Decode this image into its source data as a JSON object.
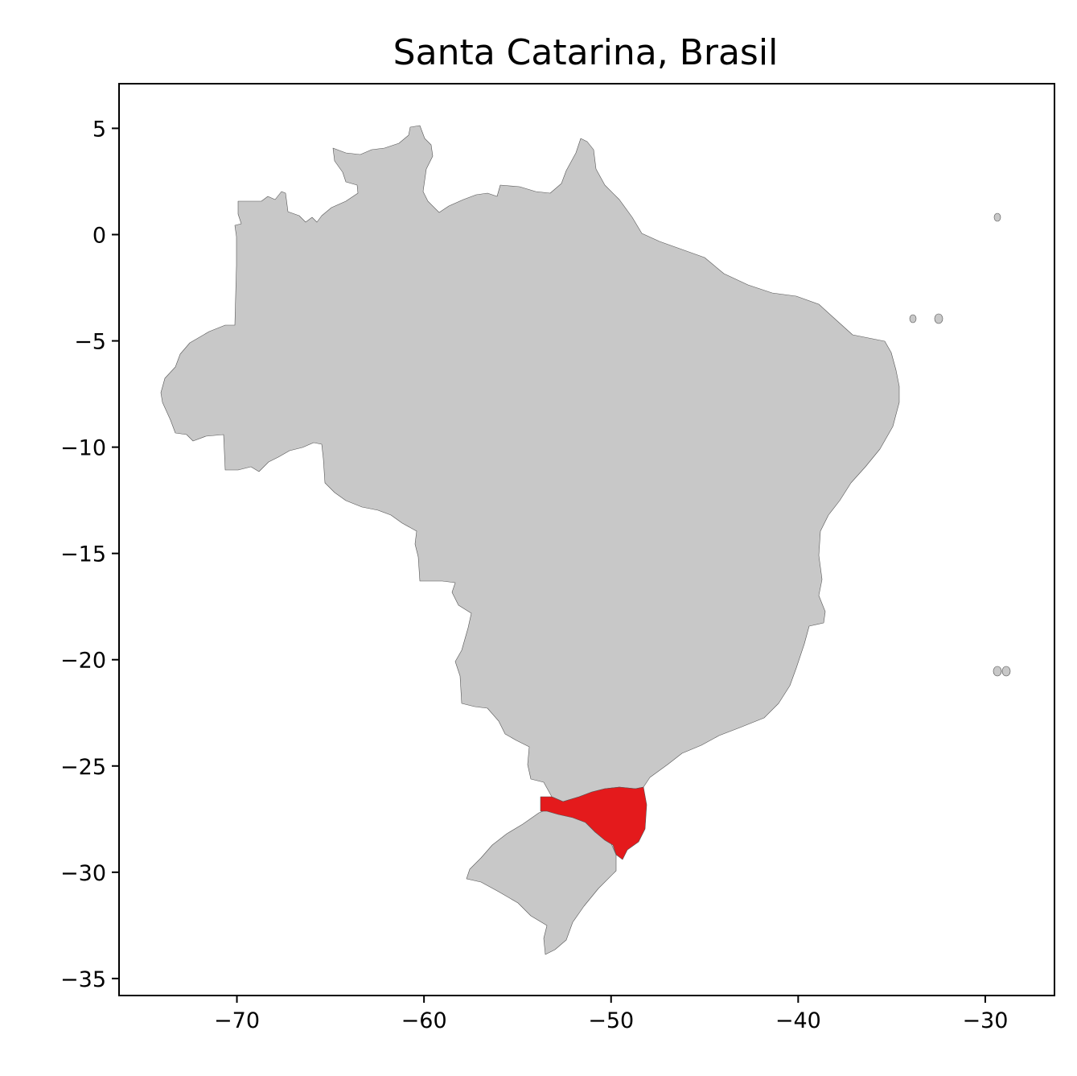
{
  "title": "Santa Catarina, Brasil",
  "colors": {
    "highlight": "#e41a1c",
    "base": "#c8c8c8",
    "edge": "#555555",
    "background": "#ffffff"
  },
  "axes": {
    "xlim": [
      -76.3,
      -26.3
    ],
    "ylim": [
      -35.8,
      7.1
    ],
    "x_ticks": [
      {
        "value": -70,
        "label": "−70"
      },
      {
        "value": -60,
        "label": "−60"
      },
      {
        "value": -50,
        "label": "−50"
      },
      {
        "value": -40,
        "label": "−40"
      },
      {
        "value": -30,
        "label": "−30"
      }
    ],
    "y_ticks": [
      {
        "value": 5,
        "label": "5"
      },
      {
        "value": 0,
        "label": "0"
      },
      {
        "value": -5,
        "label": "−5"
      },
      {
        "value": -10,
        "label": "−10"
      },
      {
        "value": -15,
        "label": "−15"
      },
      {
        "value": -20,
        "label": "−20"
      },
      {
        "value": -25,
        "label": "−25"
      },
      {
        "value": -30,
        "label": "−30"
      },
      {
        "value": -35,
        "label": "−35"
      }
    ]
  },
  "map": {
    "highlighted_region": "Santa Catarina",
    "base_region": "Brasil"
  }
}
